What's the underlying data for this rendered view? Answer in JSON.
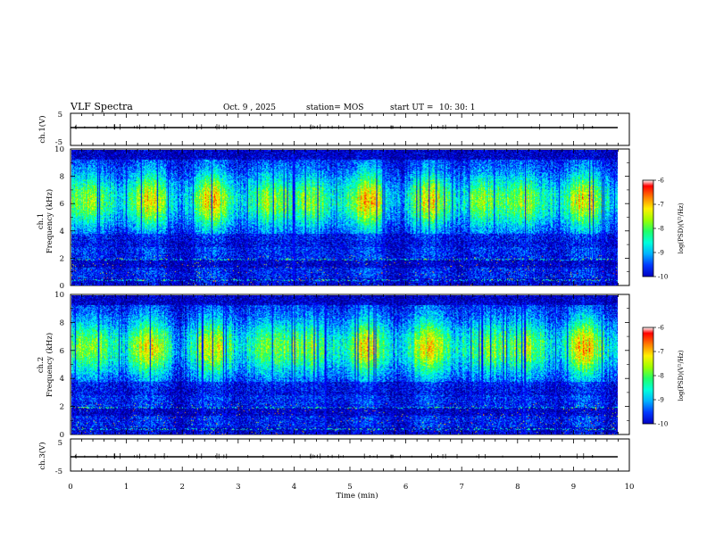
{
  "header": {
    "title": "VLF Spectra",
    "date": "Oct. 9 , 2025",
    "station": "station= MOS",
    "start_ut": "start UT =",
    "start_time": "10: 30: 1"
  },
  "colors": {
    "scale": [
      "#00008b",
      "#0000ff",
      "#0088ff",
      "#00ffff",
      "#00ff88",
      "#88ff00",
      "#ffff00",
      "#ff8800",
      "#ff0000",
      "#ffffff"
    ],
    "background": "#000066",
    "axis": "#000000"
  },
  "chart_data": [
    {
      "type": "line",
      "name": "ch1-waveform",
      "ylabel": "ch.1(V)",
      "ylim": [
        -5,
        5
      ],
      "yticks": [
        "5",
        "-5"
      ],
      "level": 0,
      "xlim": [
        0,
        10
      ]
    },
    {
      "type": "heatmap",
      "name": "ch1-spectrogram",
      "ylabel": "Frequency (kHz)",
      "ylabel_channel": "ch.1",
      "ylim": [
        0,
        10
      ],
      "yticks": [
        "0",
        "2",
        "4",
        "6",
        "8",
        "10"
      ],
      "xlim": [
        0,
        9.85
      ],
      "value_label": "log(PSD)(V²/Hz)",
      "value_range": [
        -10,
        -6
      ],
      "band_centers_khz": [
        7.0,
        5.5
      ],
      "colorbar": {
        "label": "log(PSD)(V²/Hz)",
        "ticks": [
          "-6",
          "-7",
          "-8",
          "-9",
          "-10"
        ]
      }
    },
    {
      "type": "heatmap",
      "name": "ch2-spectrogram",
      "ylabel": "Frequency (kHz)",
      "ylabel_channel": "ch.2",
      "ylim": [
        0,
        10
      ],
      "yticks": [
        "0",
        "2",
        "4",
        "6",
        "8",
        "10"
      ],
      "xlim": [
        0,
        9.85
      ],
      "value_label": "log(PSD)(V²/Hz)",
      "value_range": [
        -10,
        -6
      ],
      "band_centers_khz": [
        6.5,
        6.0
      ],
      "colorbar": {
        "label": "log(PSD)(V²/Hz)",
        "ticks": [
          "-6",
          "-7",
          "-8",
          "-9",
          "-10"
        ]
      }
    },
    {
      "type": "line",
      "name": "ch3-waveform",
      "ylabel": "ch.3(V)",
      "ylim": [
        -5,
        5
      ],
      "yticks": [
        "5",
        "-5"
      ],
      "level": 0,
      "xlim": [
        0,
        10
      ]
    }
  ],
  "xaxis": {
    "label": "Time (min)",
    "ticks": [
      "0",
      "1",
      "2",
      "3",
      "4",
      "5",
      "6",
      "7",
      "8",
      "9",
      "10"
    ],
    "range": [
      0,
      10
    ]
  }
}
